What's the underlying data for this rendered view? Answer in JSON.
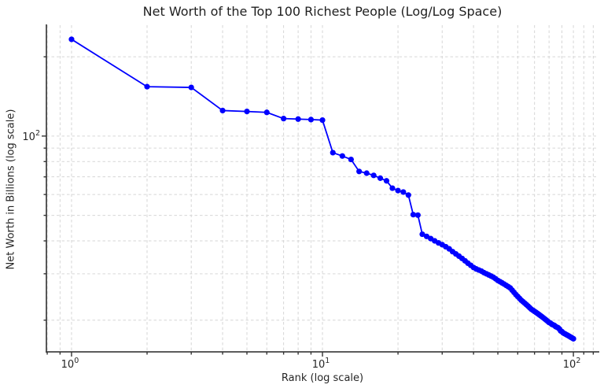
{
  "colors": {
    "line": "#0000ff",
    "marker": "#0000ff",
    "grid": "#d6d6d6",
    "spine": "#454545",
    "tick": "#333333",
    "text": "#262626",
    "background": "#ffffff"
  },
  "chart_data": {
    "type": "line",
    "title": "Net Worth of the Top 100 Richest People (Log/Log Space)",
    "xlabel": "Rank (log scale)",
    "ylabel": "Net Worth in Billions (log scale)",
    "xscale": "log",
    "yscale": "log",
    "grid": true,
    "grid_linestyle": "dashed",
    "legend": false,
    "marker": "circle",
    "xlim": [
      0.794,
      125.9
    ],
    "ylim": [
      15.16,
      263.6
    ],
    "x_major_ticks": [
      {
        "value": 1,
        "base": "10",
        "exp": "0"
      },
      {
        "value": 10,
        "base": "10",
        "exp": "1"
      },
      {
        "value": 100,
        "base": "10",
        "exp": "2"
      }
    ],
    "y_major_ticks": [
      {
        "value": 100,
        "base": "10",
        "exp": "2"
      }
    ],
    "x_minor_ticks": [
      0.8,
      0.9,
      2,
      3,
      4,
      5,
      6,
      7,
      8,
      9,
      20,
      30,
      40,
      50,
      60,
      70,
      80,
      90,
      110,
      120
    ],
    "y_minor_ticks": [
      20,
      30,
      40,
      50,
      60,
      70,
      80,
      90,
      200
    ],
    "ranks": [
      1,
      2,
      3,
      4,
      5,
      6,
      7,
      8,
      9,
      10,
      11,
      12,
      13,
      14,
      15,
      16,
      17,
      18,
      19,
      20,
      21,
      22,
      23,
      24,
      25,
      26,
      27,
      28,
      29,
      30,
      31,
      32,
      33,
      34,
      35,
      36,
      37,
      38,
      39,
      40,
      41,
      42,
      43,
      44,
      45,
      46,
      47,
      48,
      49,
      50,
      51,
      52,
      53,
      54,
      55,
      56,
      57,
      58,
      59,
      60,
      61,
      62,
      63,
      64,
      65,
      66,
      67,
      68,
      69,
      70,
      71,
      72,
      73,
      74,
      75,
      76,
      77,
      78,
      79,
      80,
      81,
      82,
      83,
      84,
      85,
      86,
      87,
      88,
      89,
      90,
      91,
      92,
      93,
      94,
      95,
      96,
      97,
      98,
      99,
      100
    ],
    "values": [
      233,
      154,
      153,
      125,
      124,
      123,
      116.5,
      116,
      115.5,
      115,
      86.5,
      84,
      81.5,
      73.4,
      72.3,
      70.9,
      69.2,
      67.6,
      63.4,
      62.1,
      61.3,
      59.7,
      50.3,
      50.1,
      42.4,
      41.6,
      40.8,
      40.0,
      39.3,
      38.7,
      38.0,
      37.3,
      36.4,
      35.7,
      35.0,
      34.3,
      33.6,
      32.9,
      32.3,
      31.7,
      31.3,
      31.0,
      30.7,
      30.3,
      30.0,
      29.7,
      29.4,
      29.1,
      28.7,
      28.3,
      28.0,
      27.7,
      27.4,
      27.1,
      26.8,
      26.5,
      26.0,
      25.5,
      25.0,
      24.6,
      24.2,
      23.8,
      23.5,
      23.2,
      22.9,
      22.6,
      22.3,
      22.0,
      21.8,
      21.6,
      21.4,
      21.2,
      21.0,
      20.8,
      20.6,
      20.4,
      20.2,
      20.0,
      19.8,
      19.6,
      19.5,
      19.3,
      19.2,
      19.1,
      18.9,
      18.8,
      18.7,
      18.5,
      18.2,
      18.1,
      17.9,
      17.8,
      17.7,
      17.6,
      17.5,
      17.4,
      17.3,
      17.2,
      17.1,
      17.0
    ]
  }
}
